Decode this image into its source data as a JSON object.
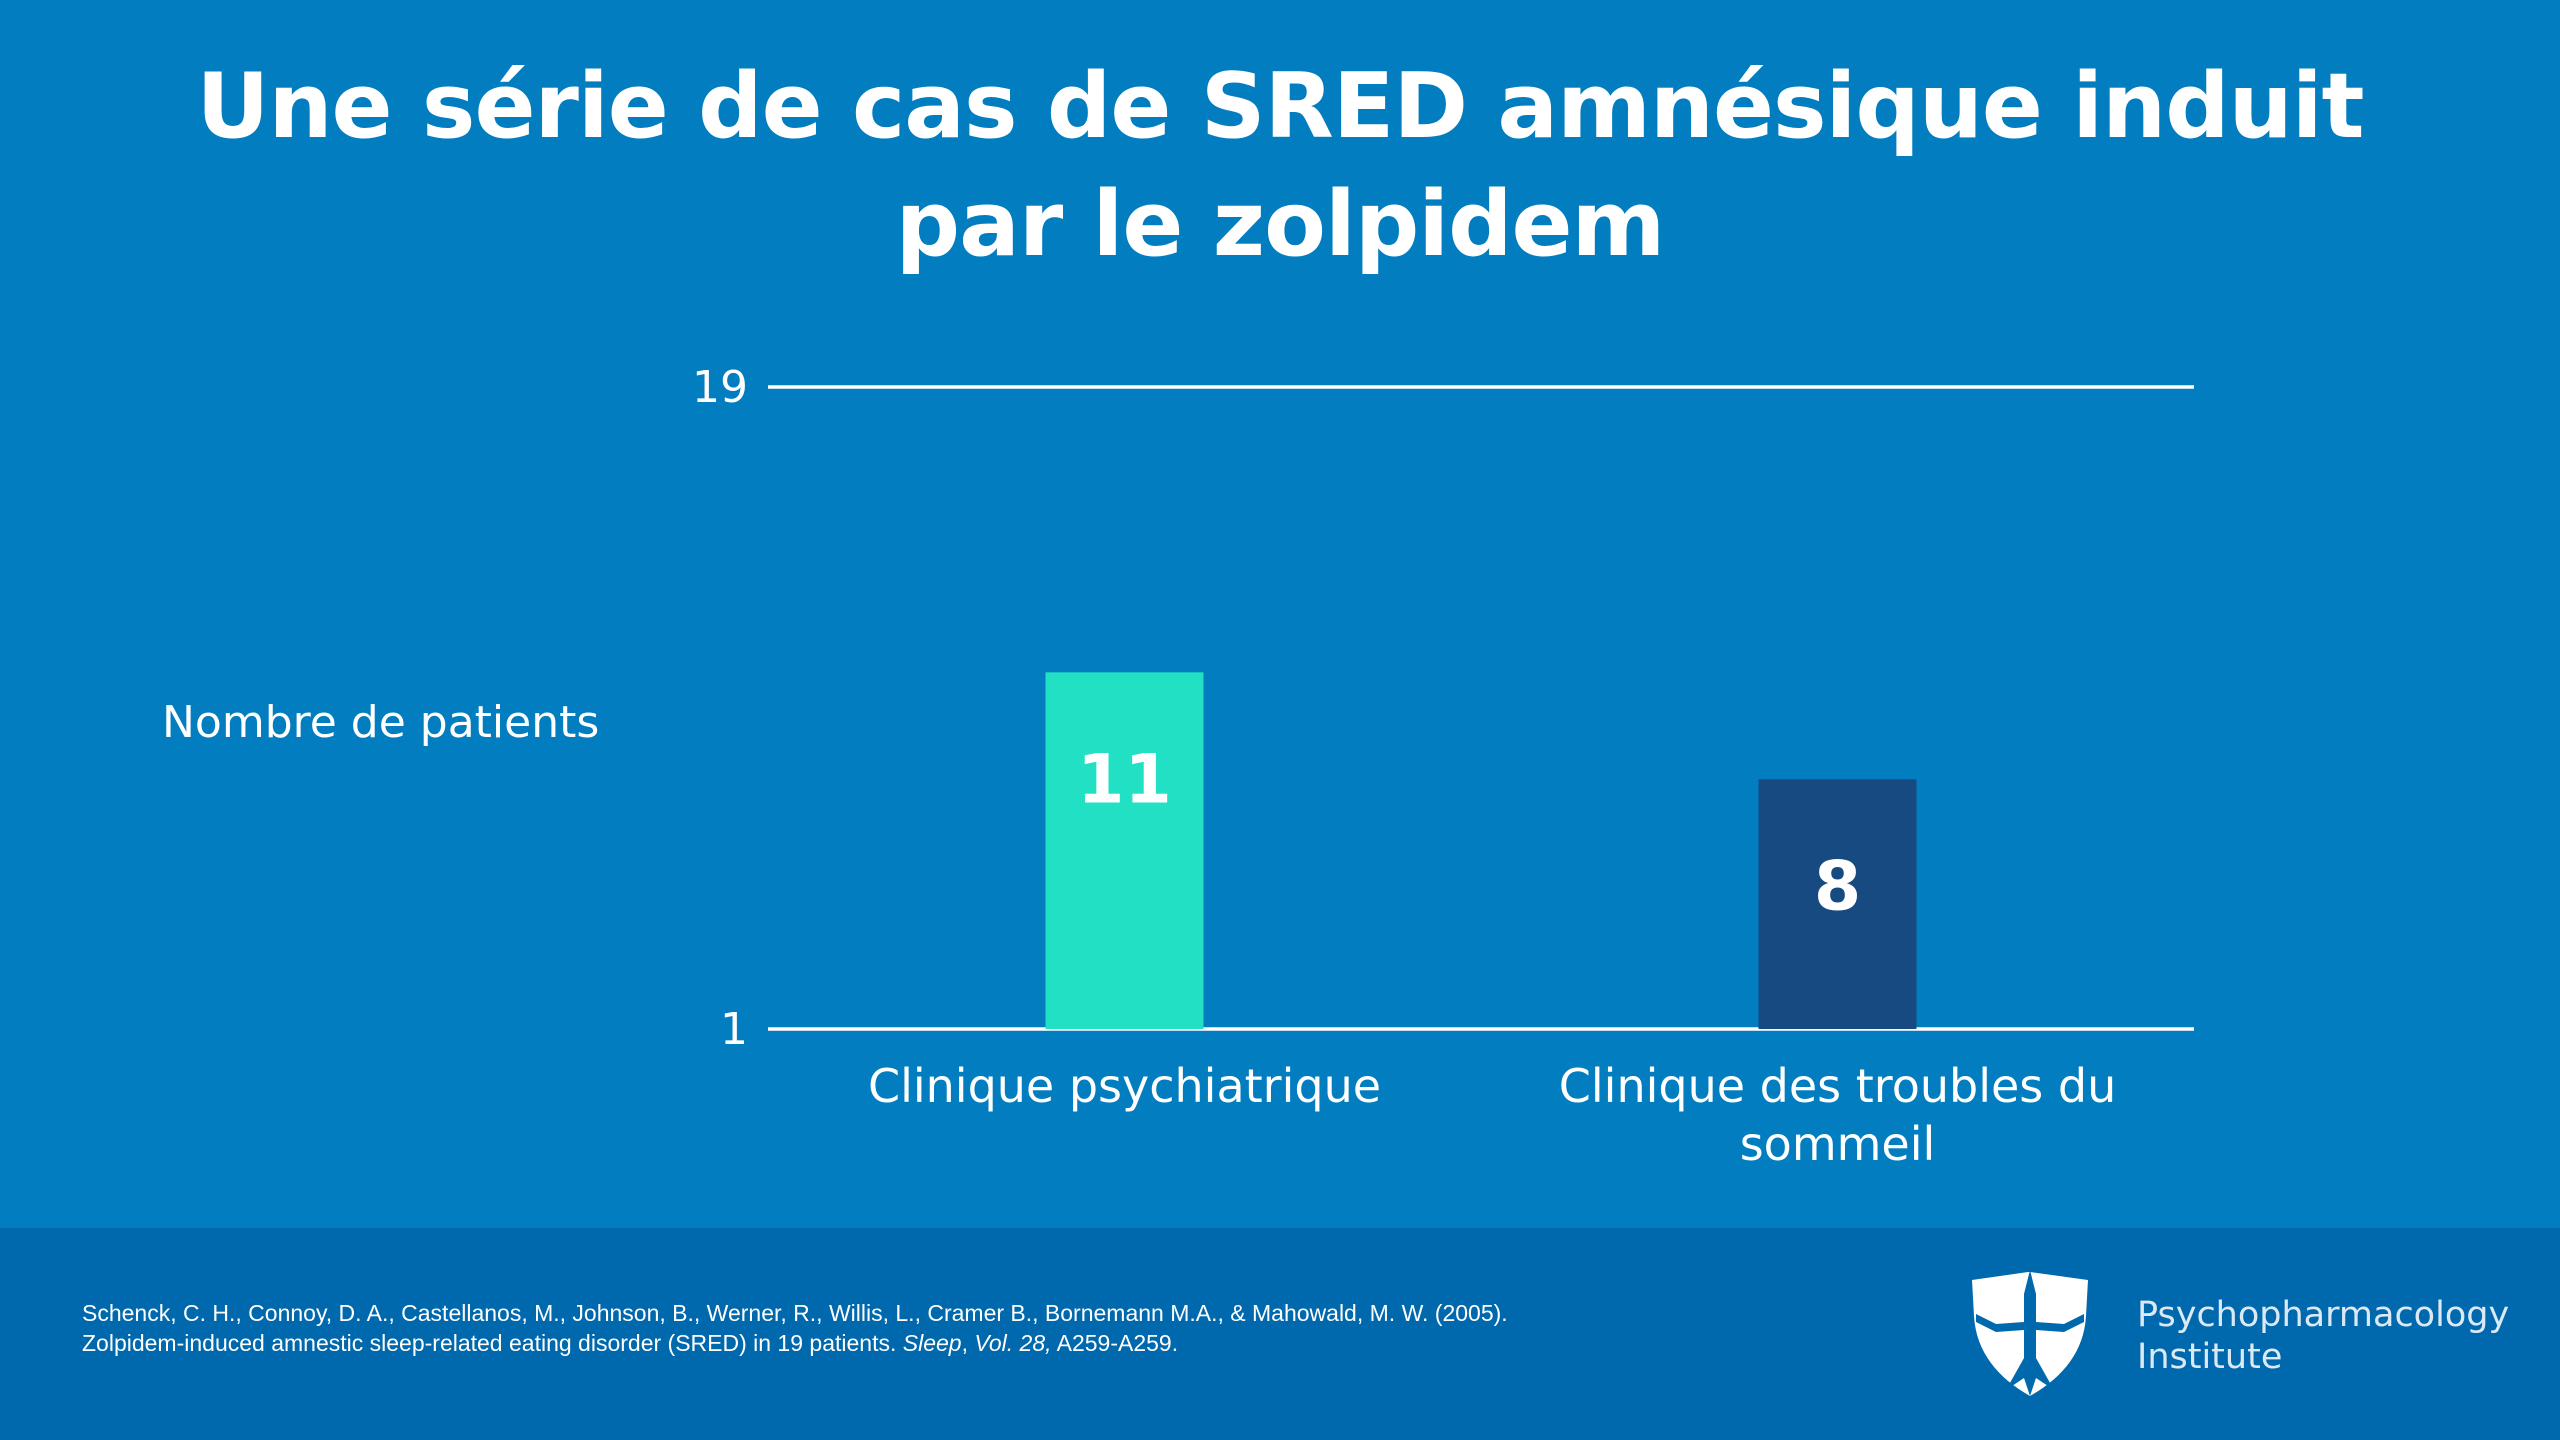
{
  "slide": {
    "title": "Une série de cas de SRED amnésique induit par le zolpidem"
  },
  "chart_data": {
    "type": "bar",
    "title": "Une série de cas de SRED amnésique induit par le zolpidem",
    "ylabel": "Nombre de patients",
    "xlabel": "",
    "categories": [
      "Clinique psychiatrique",
      "Clinique des troubles du sommeil"
    ],
    "category_lines": [
      [
        "Clinique psychiatrique"
      ],
      [
        "Clinique des troubles du",
        "sommeil"
      ]
    ],
    "values": [
      11,
      8
    ],
    "value_labels": [
      "11",
      "8"
    ],
    "ylim": [
      1,
      19
    ],
    "yticks": [
      1,
      19
    ],
    "ytick_labels": [
      "1",
      "19"
    ],
    "bar_colors": [
      "#22e0c3",
      "#164a80"
    ],
    "grid": true,
    "legend": "none"
  },
  "footer": {
    "citation_line1": "Schenck, C. H., Connoy, D. A., Castellanos, M., Johnson, B., Werner, R., Willis, L., Cramer B., Bornemann M.A., & Mahowald, M. W. (2005).",
    "citation_line2_plain": "Zolpidem-induced amnestic sleep-related eating disorder (SRED) in 19 patients. ",
    "citation_journal": "Sleep",
    "citation_sep": ", ",
    "citation_volume": "Vol. 28,",
    "citation_pages": " A259-A259.",
    "brand_line1": "Psychopharmacology",
    "brand_line2": "Institute"
  },
  "colors": {
    "background": "#017dc0",
    "footer": "#0068ac",
    "bar_1": "#22e0c3",
    "bar_2": "#164a80"
  },
  "icons": [
    "shield-logo-icon"
  ]
}
